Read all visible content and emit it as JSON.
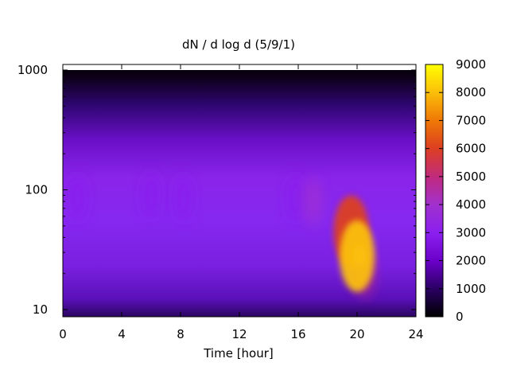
{
  "chart_data": {
    "type": "heatmap",
    "title": "dN / d log d (5/9/1)",
    "xlabel": "Time [hour]",
    "ylabel": "",
    "x_ticks": [
      "0",
      "4",
      "8",
      "12",
      "16",
      "20",
      "24"
    ],
    "y_ticks": [
      "10",
      "100",
      "1000"
    ],
    "colorbar_ticks": [
      "0",
      "1000",
      "2000",
      "3000",
      "4000",
      "5000",
      "6000",
      "7000",
      "8000",
      "9000"
    ],
    "xlim": [
      0,
      24
    ],
    "ylim": [
      10,
      1000
    ],
    "y_scale": "log",
    "zlim": [
      0,
      9000
    ],
    "colormap": [
      "#000000",
      "#2a0063",
      "#6a00c8",
      "#8a1fef",
      "#a030d0",
      "#c02a80",
      "#dd4020",
      "#ef7a05",
      "#fbbf0a",
      "#ffff00"
    ],
    "hotspots": [
      {
        "time": 20.0,
        "diameter": 28,
        "value": 8000
      },
      {
        "time": 19.6,
        "diameter": 45,
        "value": 5500
      },
      {
        "time": 20.5,
        "diameter": 20,
        "value": 5000
      },
      {
        "time": 17.0,
        "diameter": 80,
        "value": 3800
      },
      {
        "time": 15.8,
        "diameter": 85,
        "value": 3300
      },
      {
        "time": 1.0,
        "diameter": 85,
        "value": 3200
      },
      {
        "time": 6.0,
        "diameter": 90,
        "value": 3100
      },
      {
        "time": 8.2,
        "diameter": 85,
        "value": 3200
      }
    ]
  }
}
